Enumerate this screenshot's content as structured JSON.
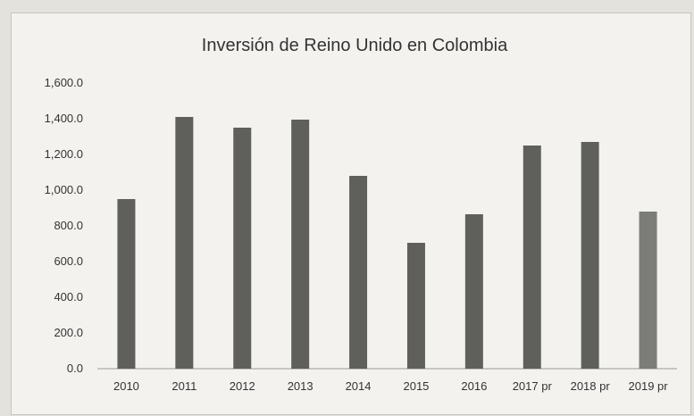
{
  "chart_data": {
    "type": "bar",
    "title": "Inversión de Reino Unido en Colombia",
    "xlabel": "",
    "ylabel": "",
    "categories": [
      "2010",
      "2011",
      "2012",
      "2013",
      "2014",
      "2015",
      "2016",
      "2017 pr",
      "2018 pr",
      "2019 pr"
    ],
    "values": [
      950,
      1410,
      1350,
      1395,
      1080,
      705,
      865,
      1250,
      1270,
      880
    ],
    "ylim": [
      0,
      1600
    ],
    "yticks": [
      "0.0",
      "200.0",
      "400.0",
      "600.0",
      "800.0",
      "1,000.0",
      "1,200.0",
      "1,400.0",
      "1,600.0"
    ],
    "grid": false,
    "legend": "none",
    "bar_color": "#5f605c",
    "last_bar_color": "#7c7d79"
  }
}
